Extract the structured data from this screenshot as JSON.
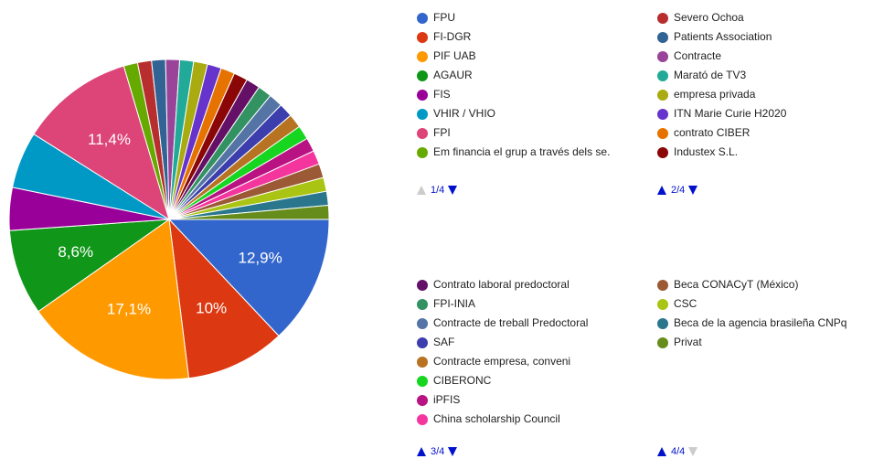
{
  "chart_data": {
    "type": "pie",
    "categories": [
      "FPU",
      "FI-DGR",
      "PIF UAB",
      "AGAUR",
      "FIS",
      "VHIR / VHIO",
      "FPI",
      "Em financia el grup a través dels se.",
      "Severo Ochoa",
      "Patients Association",
      "Contracte",
      "Marató de TV3",
      "empresa privada",
      "ITN Marie Curie H2020",
      "contrato CIBER",
      "Industex S.L.",
      "Contrato laboral predoctoral",
      "FPI-INIA",
      "Contracte de treball Predoctoral",
      "SAF",
      "Contracte empresa, conveni",
      "CIBERONC",
      "iPFIS",
      "China scholarship Council",
      "Beca CONACyT (México)",
      "CSC",
      "Beca de la agencia brasileña CNPq",
      "Privat"
    ],
    "values": [
      12.9,
      10,
      17.1,
      8.6,
      4.3,
      5.7,
      11.4,
      1.4,
      1.4,
      1.4,
      1.4,
      1.4,
      1.4,
      1.4,
      1.4,
      1.4,
      1.4,
      1.4,
      1.4,
      1.4,
      1.4,
      1.4,
      1.4,
      1.4,
      1.4,
      1.4,
      1.4,
      1.4
    ],
    "value_labels": [
      "12,9%",
      "10%",
      "17,1%",
      "8,6%",
      null,
      null,
      "11,4%",
      null,
      null,
      null,
      null,
      null,
      null,
      null,
      null,
      null,
      null,
      null,
      null,
      null,
      null,
      null,
      null,
      null,
      null,
      null,
      null,
      null
    ],
    "colors": [
      "#3366cc",
      "#dc3912",
      "#ff9900",
      "#109618",
      "#990099",
      "#0099c6",
      "#dd4477",
      "#66aa00",
      "#b82e2e",
      "#316395",
      "#994499",
      "#22aa99",
      "#aaaa11",
      "#6633cc",
      "#e67300",
      "#8b0707",
      "#651067",
      "#329262",
      "#5574a6",
      "#3b3eac",
      "#b77322",
      "#16d620",
      "#b91383",
      "#f4359e",
      "#9c5935",
      "#a9c413",
      "#2a778d",
      "#668d1c"
    ],
    "legend_pages": [
      "1/4",
      "2/4",
      "3/4",
      "4/4"
    ]
  }
}
